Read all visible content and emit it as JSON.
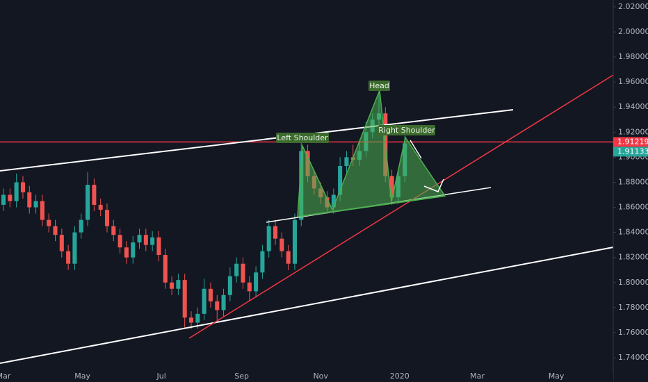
{
  "chart_data": {
    "type": "candlestick",
    "x": [
      0,
      5,
      10,
      15,
      20,
      25,
      30,
      35,
      40,
      45,
      50,
      55,
      60,
      65,
      70,
      75,
      80,
      85,
      90,
      95,
      100,
      105,
      110,
      115,
      120,
      125,
      130,
      135,
      140,
      145,
      150,
      155,
      160,
      165,
      170,
      175,
      180,
      185,
      190,
      195,
      200,
      205,
      210,
      215,
      220,
      225,
      230,
      235,
      240,
      245,
      250,
      255,
      260,
      265,
      270,
      275,
      280,
      285,
      290,
      295,
      300,
      305,
      310
    ],
    "open": [
      1.862,
      1.87,
      1.865,
      1.88,
      1.872,
      1.86,
      1.865,
      1.85,
      1.845,
      1.838,
      1.825,
      1.815,
      1.84,
      1.85,
      1.878,
      1.862,
      1.858,
      1.845,
      1.838,
      1.828,
      1.82,
      1.832,
      1.838,
      1.83,
      1.836,
      1.822,
      1.8,
      1.795,
      1.802,
      1.772,
      1.768,
      1.775,
      1.795,
      1.785,
      1.778,
      1.79,
      1.805,
      1.815,
      1.8,
      1.793,
      1.808,
      1.825,
      1.845,
      1.835,
      1.825,
      1.815,
      1.85,
      1.905,
      1.885,
      1.875,
      1.868,
      1.86,
      1.87,
      1.893,
      1.9,
      1.898,
      1.905,
      1.92,
      1.93,
      1.935,
      1.885,
      1.868,
      1.885
    ],
    "high": [
      1.875,
      1.875,
      1.887,
      1.885,
      1.877,
      1.87,
      1.87,
      1.855,
      1.85,
      1.843,
      1.83,
      1.845,
      1.855,
      1.888,
      1.883,
      1.867,
      1.863,
      1.85,
      1.843,
      1.833,
      1.837,
      1.843,
      1.843,
      1.841,
      1.841,
      1.827,
      1.805,
      1.807,
      1.807,
      1.777,
      1.78,
      1.803,
      1.8,
      1.79,
      1.795,
      1.812,
      1.82,
      1.82,
      1.805,
      1.813,
      1.83,
      1.85,
      1.85,
      1.84,
      1.83,
      1.855,
      1.912,
      1.91,
      1.89,
      1.88,
      1.873,
      1.875,
      1.9,
      1.905,
      1.91,
      1.912,
      1.928,
      1.935,
      1.952,
      1.94,
      1.89,
      1.89,
      1.917
    ],
    "low": [
      1.857,
      1.86,
      1.86,
      1.867,
      1.855,
      1.855,
      1.845,
      1.84,
      1.833,
      1.82,
      1.81,
      1.81,
      1.835,
      1.845,
      1.857,
      1.853,
      1.84,
      1.833,
      1.823,
      1.815,
      1.815,
      1.827,
      1.825,
      1.825,
      1.817,
      1.795,
      1.79,
      1.79,
      1.764,
      1.763,
      1.763,
      1.77,
      1.78,
      1.77,
      1.773,
      1.785,
      1.8,
      1.795,
      1.785,
      1.788,
      1.803,
      1.82,
      1.83,
      1.82,
      1.81,
      1.81,
      1.845,
      1.88,
      1.87,
      1.863,
      1.855,
      1.855,
      1.865,
      1.888,
      1.893,
      1.893,
      1.9,
      1.915,
      1.925,
      1.88,
      1.862,
      1.863,
      1.88
    ],
    "close": [
      1.87,
      1.865,
      1.88,
      1.872,
      1.86,
      1.865,
      1.85,
      1.845,
      1.838,
      1.825,
      1.815,
      1.84,
      1.85,
      1.878,
      1.862,
      1.858,
      1.845,
      1.838,
      1.828,
      1.82,
      1.832,
      1.838,
      1.83,
      1.836,
      1.822,
      1.8,
      1.795,
      1.802,
      1.772,
      1.768,
      1.775,
      1.795,
      1.785,
      1.778,
      1.79,
      1.805,
      1.815,
      1.8,
      1.793,
      1.808,
      1.825,
      1.845,
      1.835,
      1.825,
      1.815,
      1.85,
      1.905,
      1.885,
      1.875,
      1.868,
      1.86,
      1.87,
      1.893,
      1.9,
      1.898,
      1.905,
      1.92,
      1.93,
      1.935,
      1.885,
      1.868,
      1.885,
      1.911
    ],
    "up_color": "#26a69a",
    "down_color": "#ef5350",
    "xlim": [
      -2.7,
      471
    ],
    "xticks": [
      {
        "value": 0,
        "label": "Mar"
      },
      {
        "value": 61,
        "label": "May"
      },
      {
        "value": 122,
        "label": "Jul"
      },
      {
        "value": 184,
        "label": "Sep"
      },
      {
        "value": 245,
        "label": "Nov"
      },
      {
        "value": 306,
        "label": "2020"
      },
      {
        "value": 366,
        "label": "Mar"
      },
      {
        "value": 427,
        "label": "May"
      }
    ],
    "ylim": [
      1.7289,
      2.0255
    ],
    "yticks": [
      {
        "value": 1.74,
        "label": "1.74000"
      },
      {
        "value": 1.76,
        "label": "1.76000"
      },
      {
        "value": 1.78,
        "label": "1.78000"
      },
      {
        "value": 1.8,
        "label": "1.80000"
      },
      {
        "value": 1.82,
        "label": "1.82000"
      },
      {
        "value": 1.84,
        "label": "1.84000"
      },
      {
        "value": 1.86,
        "label": "1.86000"
      },
      {
        "value": 1.88,
        "label": "1.88000"
      },
      {
        "value": 1.9,
        "label": "1.90000"
      },
      {
        "value": 1.92,
        "label": "1.92000"
      },
      {
        "value": 1.94,
        "label": "1.94000"
      },
      {
        "value": 1.96,
        "label": "1.96000"
      },
      {
        "value": 1.98,
        "label": "1.98000"
      },
      {
        "value": 2.0,
        "label": "2.00000"
      },
      {
        "value": 2.02,
        "label": "2.02000"
      }
    ],
    "grid": true,
    "horizontal_line": 1.91219,
    "last_price": 1.91133,
    "annotations": {
      "head": "Head",
      "left_shoulder": "Left Shoulder",
      "right_shoulder": "Right Shoulder"
    }
  }
}
